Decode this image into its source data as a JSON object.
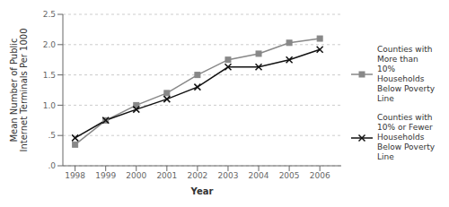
{
  "chart_data": {
    "type": "line",
    "x_label": "Year",
    "y_label": "Mean Number of Public\nInternet Terminals Per 1000",
    "x": [
      1998,
      1999,
      2000,
      2001,
      2002,
      2003,
      2004,
      2005,
      2006
    ],
    "series": [
      {
        "name": "Counties with\nMore than\n10%\nHouseholds\nBelow Poverty\nLine",
        "color": "#888888",
        "marker": "square",
        "values": [
          0.35,
          0.75,
          1.0,
          1.2,
          1.5,
          1.75,
          1.85,
          2.03,
          2.1
        ]
      },
      {
        "name": "Counties with\n10% or Fewer\nHouseholds\nBelow Poverty\nLine",
        "color": "#111111",
        "marker": "x",
        "values": [
          0.46,
          0.75,
          0.93,
          1.1,
          1.3,
          1.63,
          1.63,
          1.75,
          1.92
        ]
      }
    ],
    "xlim": [
      1997.6,
      2006.7
    ],
    "xticks": [
      1998,
      1999,
      2000,
      2001,
      2002,
      2003,
      2004,
      2005,
      2006
    ],
    "ylim": [
      0.0,
      2.5
    ],
    "yticks": [
      {
        "value": 0.0,
        "label": ".0"
      },
      {
        "value": 0.5,
        "label": ".5"
      },
      {
        "value": 1.0,
        "label": "1.0"
      },
      {
        "value": 1.5,
        "label": "1.5"
      },
      {
        "value": 2.0,
        "label": "2.0"
      },
      {
        "value": 2.5,
        "label": "2.5"
      }
    ],
    "grid": true,
    "legend": "right"
  }
}
